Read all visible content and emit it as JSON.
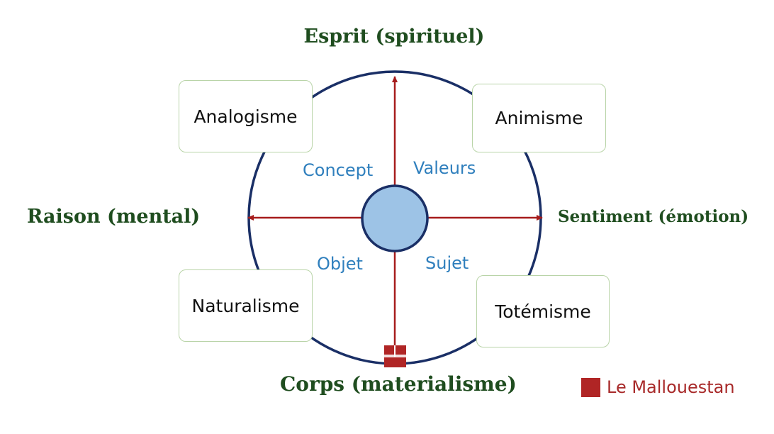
{
  "axes": {
    "top": "Esprit (spirituel)",
    "left": "Raison (mental)",
    "right": "Sentiment (émotion)",
    "bottom": "Corps (materialisme)"
  },
  "boxes": {
    "top_left": "Analogisme",
    "top_right": "Animisme",
    "bottom_left": "Naturalisme",
    "bottom_right": "Totémisme"
  },
  "quadrants": {
    "top_left": "Concept",
    "top_right": "Valeurs",
    "bottom_left": "Objet",
    "bottom_right": "Sujet"
  },
  "brand": {
    "text": "Le Mallouestan"
  },
  "colors": {
    "circle_stroke": "#1a2f66",
    "arrow": "#a61c1c",
    "center_fill": "#9dc3e6",
    "quadrant_text": "#2f7fbd",
    "axis_text": "#1f4d1f",
    "brand": "#b02525"
  }
}
